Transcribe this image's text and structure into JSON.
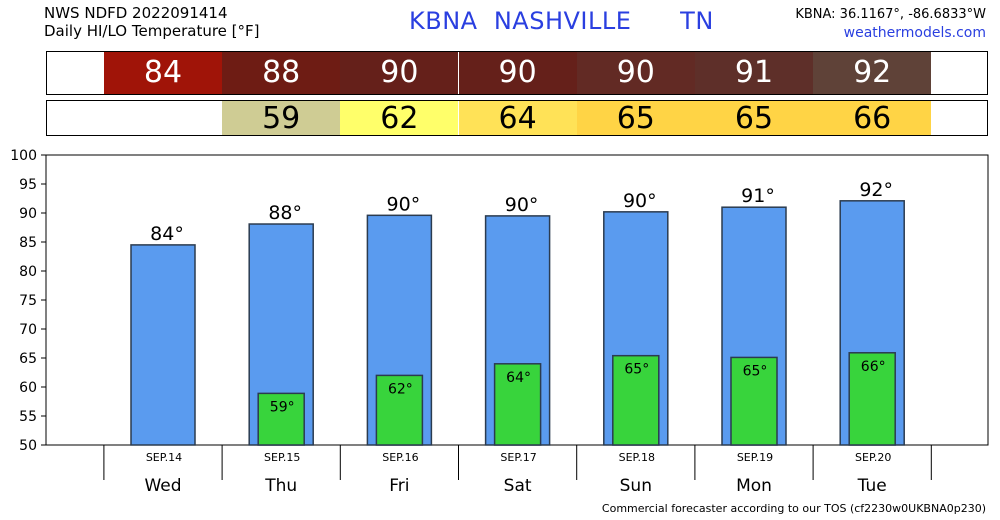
{
  "header": {
    "line1": "NWS NDFD 2022091414",
    "line2": "Daily HI/LO Temperature [°F]",
    "station": "KBNA  NASHVILLE      TN",
    "coords": "KBNA: 36.1167°, -86.6833°W",
    "site": "weathermodels.com"
  },
  "strip": {
    "hi": [
      {
        "label": "84",
        "color": "#a01408"
      },
      {
        "label": "88",
        "color": "#6e1c14"
      },
      {
        "label": "90",
        "color": "#65201a"
      },
      {
        "label": "90",
        "color": "#65201a"
      },
      {
        "label": "90",
        "color": "#622a24"
      },
      {
        "label": "91",
        "color": "#5e2f29"
      },
      {
        "label": "92",
        "color": "#5f4238"
      }
    ],
    "lo": [
      {
        "label": "",
        "color": "#ffffff"
      },
      {
        "label": "59",
        "color": "#cfcc94"
      },
      {
        "label": "62",
        "color": "#ffff6a"
      },
      {
        "label": "64",
        "color": "#ffe257"
      },
      {
        "label": "65",
        "color": "#ffd445"
      },
      {
        "label": "65",
        "color": "#ffd445"
      },
      {
        "label": "66",
        "color": "#ffd445"
      }
    ]
  },
  "chart_data": {
    "type": "bar",
    "categories": [
      "Wed",
      "Thu",
      "Fri",
      "Sat",
      "Sun",
      "Mon",
      "Tue"
    ],
    "dates": [
      "SEP.14",
      "SEP.15",
      "SEP.16",
      "SEP.17",
      "SEP.18",
      "SEP.19",
      "SEP.20"
    ],
    "series": [
      {
        "values": [
          84.5,
          88.1,
          89.6,
          89.5,
          90.2,
          91.0,
          92.1
        ],
        "labels": [
          "84°",
          "88°",
          "90°",
          "90°",
          "90°",
          "91°",
          "92°"
        ],
        "color": "#5a9bef"
      },
      {
        "values": [
          null,
          58.9,
          62.0,
          64.0,
          65.4,
          65.1,
          65.9
        ],
        "labels": [
          "",
          "59°",
          "62°",
          "64°",
          "65°",
          "65°",
          "66°"
        ],
        "color": "#38d43c"
      }
    ],
    "ylim": [
      50,
      100
    ],
    "yticks": [
      50,
      55,
      60,
      65,
      70,
      75,
      80,
      85,
      90,
      95,
      100
    ],
    "grid": false
  },
  "footer": "Commercial forecaster according to our TOS (cf2230w0UKBNA0p230)"
}
